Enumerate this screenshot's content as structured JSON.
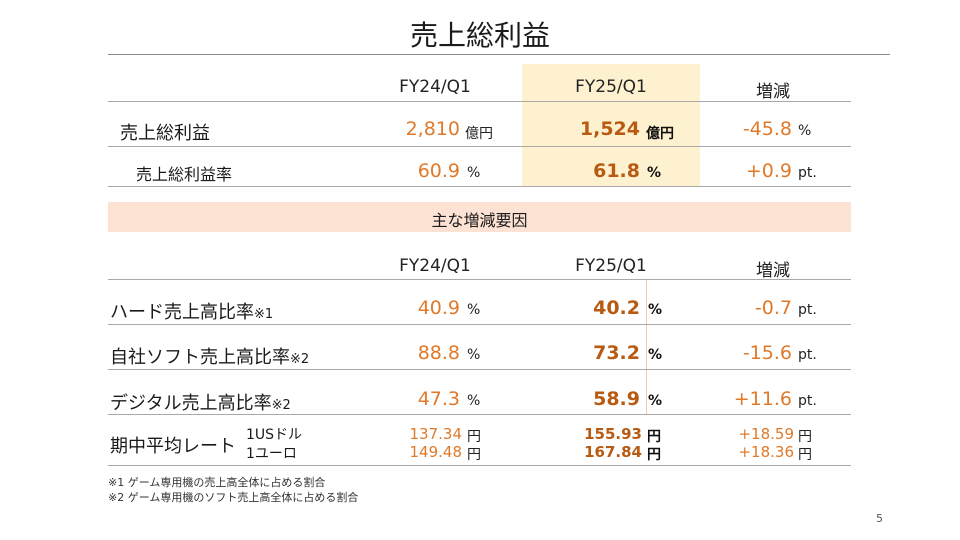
{
  "title": "売上総利益",
  "page_number": "5",
  "top_table": {
    "headers": [
      "FY24/Q1",
      "FY25/Q1",
      "増減"
    ],
    "rows": [
      {
        "label": "売上総利益",
        "fy24": "2,810",
        "fy24_unit": "億円",
        "fy25": "1,524",
        "fy25_unit": "億円",
        "change": "-45.8",
        "change_unit": "%"
      },
      {
        "label": "売上総利益率",
        "fy24": "60.9",
        "fy24_unit": "%",
        "fy25": "61.8",
        "fy25_unit": "%",
        "change": "+0.9",
        "change_unit": "pt."
      }
    ]
  },
  "factors": {
    "band_label": "主な増減要因",
    "headers": [
      "FY24/Q1",
      "FY25/Q1",
      "増減"
    ],
    "rows": [
      {
        "label": "ハード売上高比率",
        "note": "※1",
        "fy24": "40.9",
        "fy24_unit": "%",
        "fy25": "40.2",
        "fy25_unit": "%",
        "change": "-0.7",
        "change_unit": "pt."
      },
      {
        "label": "自社ソフト売上高比率",
        "note": "※2",
        "fy24": "88.8",
        "fy24_unit": "%",
        "fy25": "73.2",
        "fy25_unit": "%",
        "change": "-15.6",
        "change_unit": "pt."
      },
      {
        "label": "デジタル売上高比率",
        "note": "※2",
        "fy24": "47.3",
        "fy24_unit": "%",
        "fy25": "58.9",
        "fy25_unit": "%",
        "change": "+11.6",
        "change_unit": "pt."
      }
    ],
    "rates": {
      "label": "期中平均レート",
      "items": [
        {
          "currency": "1USドル",
          "fy24": "137.34",
          "fy25": "155.93",
          "change": "+18.59",
          "unit": "円"
        },
        {
          "currency": "1ユーロ",
          "fy24": "149.48",
          "fy25": "167.84",
          "change": "+18.36",
          "unit": "円"
        }
      ]
    }
  },
  "footnotes": [
    "※1 ゲーム専用機の売上高全体に占める割合",
    "※2 ゲーム専用機のソフト売上高全体に占める割合"
  ]
}
